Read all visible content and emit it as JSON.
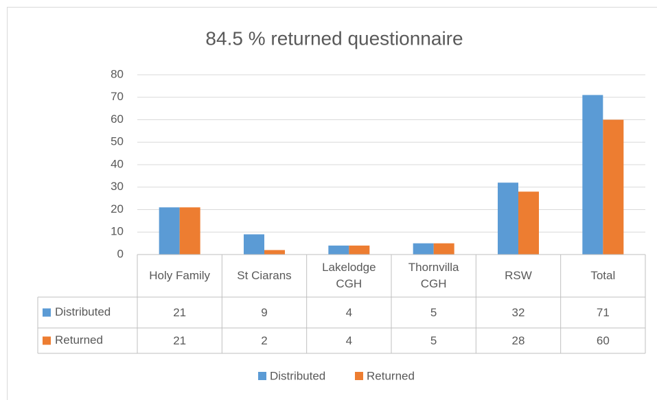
{
  "chart_data": {
    "type": "bar",
    "title": "84.5 % returned questionnaire",
    "categories": [
      "Holy Family",
      "St Ciarans",
      "Lakelodge CGH",
      "Thornvilla CGH",
      "RSW",
      "Total"
    ],
    "series": [
      {
        "name": "Distributed",
        "color": "#5b9bd5",
        "values": [
          21,
          9,
          4,
          5,
          32,
          71
        ]
      },
      {
        "name": "Returned",
        "color": "#ed7d31",
        "values": [
          21,
          2,
          4,
          5,
          28,
          60
        ]
      }
    ],
    "ylim": [
      0,
      80
    ],
    "yticks": [
      0,
      10,
      20,
      30,
      40,
      50,
      60,
      70,
      80
    ],
    "grid": true,
    "legend": "bottom",
    "data_table": true
  }
}
